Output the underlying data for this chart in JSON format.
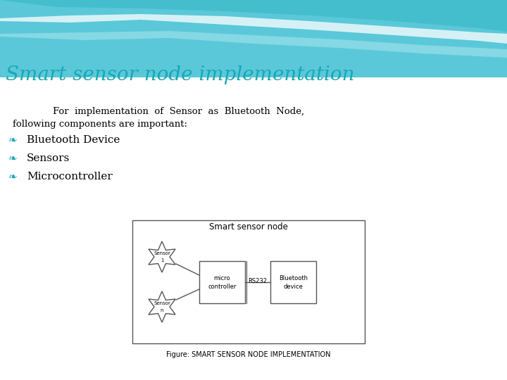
{
  "title": "Smart sensor node implementation",
  "title_color": "#17A8B8",
  "title_fontsize": 20,
  "bg_color": "#FFFFFF",
  "body_line1": "For  implementation  of  Sensor  as  Bluetooth  Node,",
  "body_line2": "following components are important:",
  "bullet_items": [
    "Bluetooth Device",
    "Sensors",
    "Microcontroller"
  ],
  "bullet_color": "#17A8B8",
  "figure_caption": "Figure: SMART SENSOR NODE IMPLEMENTATION",
  "wave_teal": "#4EC9D8",
  "wave_mid": "#7DD8E4",
  "wave_light": "#B8ECF2",
  "wave_white": "#FFFFFF",
  "diagram_title": "Smart sensor node",
  "sensor1_label": [
    "Sensor",
    "1"
  ],
  "sensorn_label": [
    "Sensor",
    "n"
  ],
  "mc_label": [
    "micro",
    "controller"
  ],
  "bt_label": [
    "Bluetooth",
    "device"
  ],
  "rs232_label": "RS232"
}
